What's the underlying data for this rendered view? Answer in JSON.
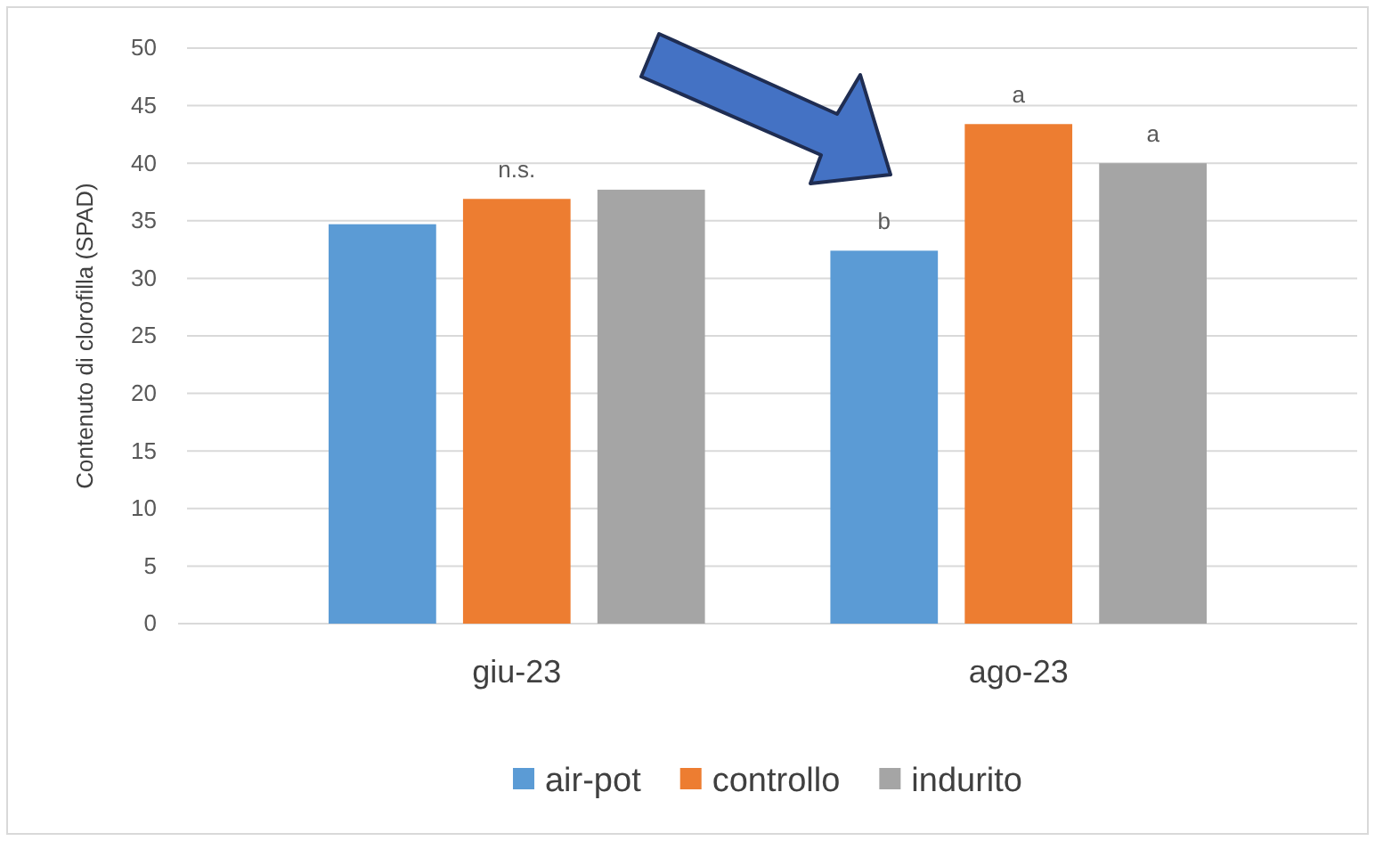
{
  "chart_data": {
    "type": "bar",
    "ylabel": "Contenuto di clorofilla (SPAD)",
    "categories": [
      "giu-23",
      "ago-23"
    ],
    "series": [
      {
        "name": "air-pot",
        "color": "#5b9bd5",
        "values": [
          34.7,
          32.4
        ],
        "value_labels": [
          null,
          "b"
        ]
      },
      {
        "name": "controllo",
        "color": "#ed7d31",
        "values": [
          36.9,
          43.4
        ],
        "value_labels": [
          "n.s.",
          "a"
        ]
      },
      {
        "name": "indurito",
        "color": "#a5a5a5",
        "values": [
          37.7,
          40.0
        ],
        "value_labels": [
          null,
          "a"
        ]
      }
    ],
    "ylim": [
      0,
      50
    ],
    "yticks": [
      0,
      5,
      10,
      15,
      20,
      25,
      30,
      35,
      40,
      45,
      50
    ],
    "grid": "y",
    "legend": "bottom"
  }
}
